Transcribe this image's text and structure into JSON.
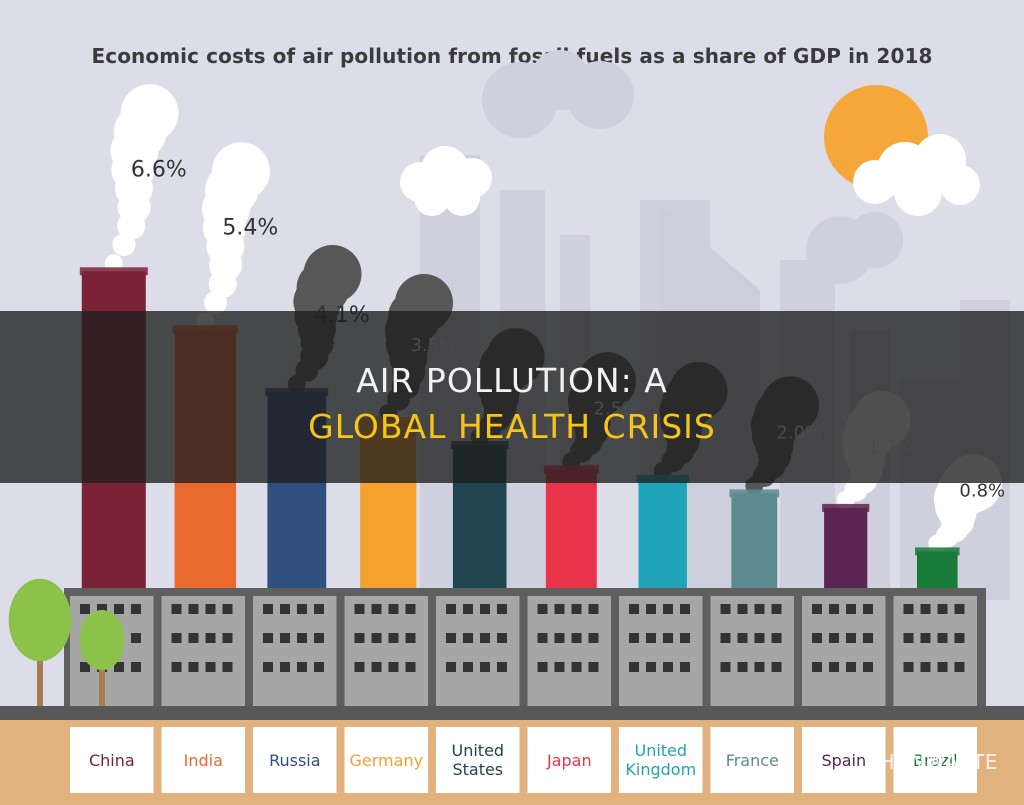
{
  "chart_data": {
    "type": "bar",
    "title": "Economic costs of air pollution from fossil fuels as a share of GDP in 2018",
    "categories": [
      "China",
      "India",
      "Russia",
      "Germany",
      "United States",
      "Japan",
      "United Kingdom",
      "France",
      "Spain",
      "Brazil"
    ],
    "values": [
      6.6,
      5.4,
      4.1,
      3.5,
      3.0,
      2.5,
      2.3,
      2.0,
      1.7,
      0.8
    ],
    "value_labels": [
      "6.6%",
      "5.4%",
      "4.1%",
      "3.5%",
      "",
      "2.5%",
      "",
      "2.0%",
      "1.7%",
      "0.8%"
    ],
    "unit": "%",
    "label_lines": [
      [
        "China"
      ],
      [
        "India"
      ],
      [
        "Russia"
      ],
      [
        "Germany"
      ],
      [
        "United",
        "States"
      ],
      [
        "Japan"
      ],
      [
        "United",
        "Kingdom"
      ],
      [
        "France"
      ],
      [
        "Spain"
      ],
      [
        "Brazil"
      ]
    ],
    "colors": [
      "#7a2236",
      "#ea6a2e",
      "#2f4f7f",
      "#f5a12f",
      "#21454f",
      "#e8334a",
      "#1fa3b8",
      "#5c8a8e",
      "#5c2452",
      "#1a7a3a"
    ],
    "label_colors": [
      "#7a2236",
      "#ea6a2e",
      "#2f4f7f",
      "#f5a12f",
      "#21454f",
      "#e8334a",
      "#1fa3b8",
      "#5c8a8e",
      "#5c2452",
      "#1a7a3a"
    ],
    "ylim": [
      0,
      7
    ],
    "grid": false,
    "legend": "none"
  },
  "overlay": {
    "line1": "AIR POLLUTION: A",
    "line2": "GLOBAL HEALTH CRISIS",
    "line2_color": "#f5c518"
  },
  "watermark": "SHUNWASTE"
}
